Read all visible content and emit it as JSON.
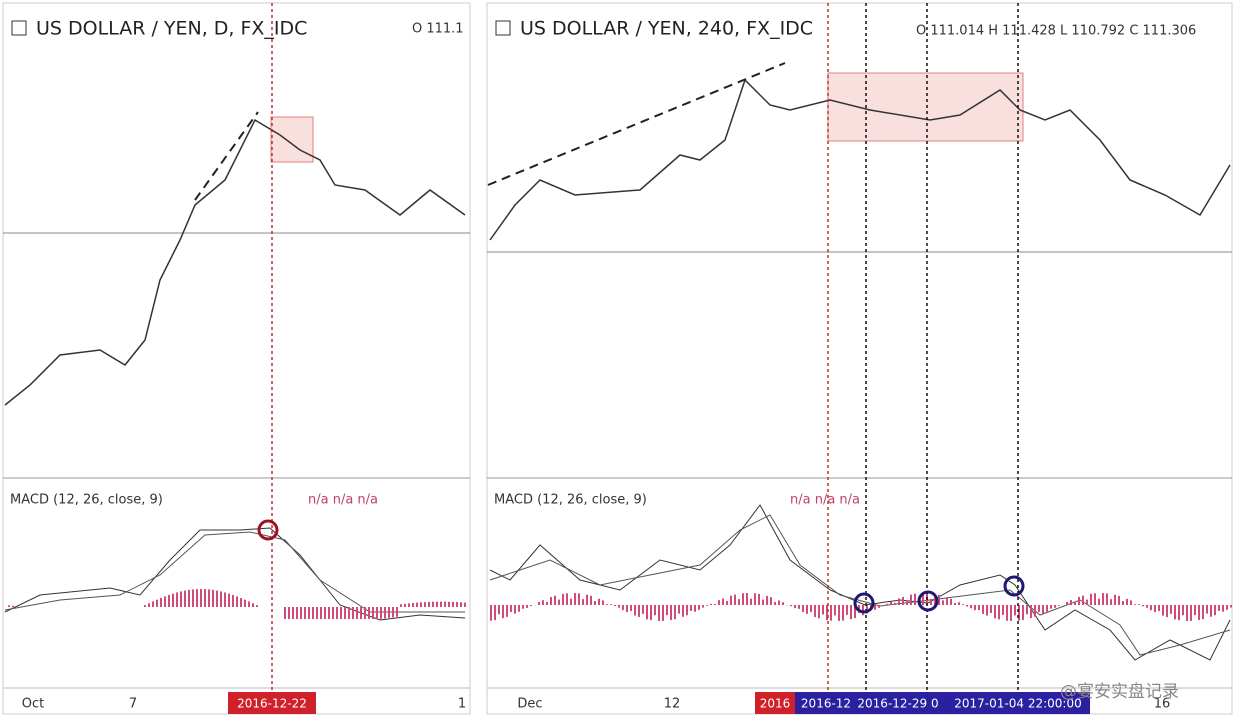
{
  "panels": [
    {
      "title": "US DOLLAR / YEN, D, FX_IDC",
      "quote": "O 111.1",
      "indicator": "MACD (12, 26, close, 9)",
      "indicator_values": "n/a n/a n/a",
      "x_labels": [
        "Oct",
        "7",
        "1"
      ],
      "cursor_labels": [
        "2016-12-22"
      ]
    },
    {
      "title": "US DOLLAR / YEN, 240, FX_IDC",
      "quote": "O 111.014 H 111.428 L 110.792 C 111.306",
      "indicator": "MACD (12, 26, close, 9)",
      "indicator_values": "n/a n/a n/a",
      "x_labels": [
        "Dec",
        "12",
        "16"
      ],
      "cursor_labels": [
        "2016",
        "2016-12",
        "2016-12-29 0",
        "2017-01-04 22:00:00"
      ]
    }
  ],
  "watermark": "@宴安实盘记录"
}
